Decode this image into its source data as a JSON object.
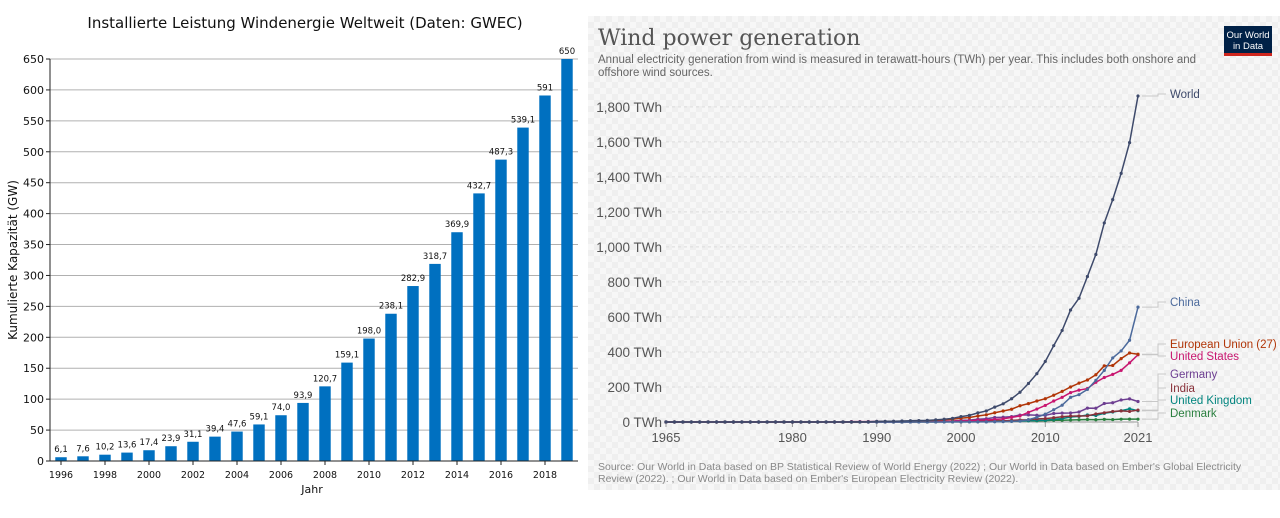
{
  "chart_data": [
    {
      "type": "bar",
      "title": "Installierte Leistung Windenergie Weltweit (Daten: GWEC)",
      "xlabel": "Jahr",
      "ylabel": "Kumulierte Kapazität (GW)",
      "ylim": [
        0,
        650
      ],
      "yticks": [
        0,
        50,
        100,
        150,
        200,
        250,
        300,
        350,
        400,
        450,
        500,
        550,
        600,
        650
      ],
      "xticks": [
        "1996",
        "1998",
        "2000",
        "2002",
        "2004",
        "2006",
        "2008",
        "2010",
        "2012",
        "2014",
        "2016",
        "2018"
      ],
      "categories": [
        "1996",
        "1997",
        "1998",
        "1999",
        "2000",
        "2001",
        "2002",
        "2003",
        "2004",
        "2005",
        "2006",
        "2007",
        "2008",
        "2009",
        "2010",
        "2011",
        "2012",
        "2013",
        "2014",
        "2015",
        "2016",
        "2017",
        "2018",
        "2019"
      ],
      "values": [
        6.1,
        7.6,
        10.2,
        13.6,
        17.4,
        23.9,
        31.1,
        39.4,
        47.6,
        59.1,
        74.0,
        93.9,
        120.7,
        159.1,
        198.0,
        238.1,
        282.9,
        318.7,
        369.9,
        432.7,
        487.3,
        539.1,
        591,
        650
      ],
      "data_labels": [
        "6,1",
        "7,6",
        "10,2",
        "13,6",
        "17,4",
        "23,9",
        "31,1",
        "39,4",
        "47,6",
        "59,1",
        "74,0",
        "93,9",
        "120,7",
        "159,1",
        "198,0",
        "238,1",
        "282,9",
        "318,7",
        "369,9",
        "432,7",
        "487,3",
        "539,1",
        "591",
        "650"
      ],
      "bar_color": "#0070c0",
      "grid": true
    },
    {
      "type": "line",
      "title": "Wind power generation",
      "subtitle": "Annual electricity generation from wind is measured in terawatt-hours (TWh) per year. This includes both onshore and offshore wind sources.",
      "source": "Source: Our World in Data based on BP Statistical Review of World Energy (2022) ; Our World in Data based on Ember's Global Electricity Review (2022). ; Our World in Data based on Ember's European Electricity Review (2022).",
      "logo": "Our World in Data",
      "logo_lines": [
        "Our World",
        "in Data"
      ],
      "xlim": [
        1965,
        2021
      ],
      "ylim": [
        0,
        1862
      ],
      "xticks": [
        "1965",
        "1980",
        "1990",
        "2000",
        "2010",
        "2021"
      ],
      "yticks": [
        0,
        200,
        400,
        600,
        800,
        1000,
        1200,
        1400,
        1600,
        1800
      ],
      "ytick_labels": [
        "0 TWh",
        "200 TWh",
        "400 TWh",
        "600 TWh",
        "800 TWh",
        "1,000 TWh",
        "1,200 TWh",
        "1,400 TWh",
        "1,600 TWh",
        "1,800 TWh"
      ],
      "x": [
        1965,
        1966,
        1967,
        1968,
        1969,
        1970,
        1971,
        1972,
        1973,
        1974,
        1975,
        1976,
        1977,
        1978,
        1979,
        1980,
        1981,
        1982,
        1983,
        1984,
        1985,
        1986,
        1987,
        1988,
        1989,
        1990,
        1991,
        1992,
        1993,
        1994,
        1995,
        1996,
        1997,
        1998,
        1999,
        2000,
        2001,
        2002,
        2003,
        2004,
        2005,
        2006,
        2007,
        2008,
        2009,
        2010,
        2011,
        2012,
        2013,
        2014,
        2015,
        2016,
        2017,
        2018,
        2019,
        2020,
        2021
      ],
      "series": [
        {
          "name": "World",
          "color": "#3e4a6b",
          "values": [
            0,
            0,
            0,
            0,
            0,
            0,
            0,
            0,
            0,
            0,
            0,
            0,
            0,
            0,
            0,
            0,
            0,
            0,
            0,
            0,
            0,
            0,
            0.5,
            1,
            1.5,
            3.6,
            4,
            4.6,
            5.6,
            7.2,
            8.3,
            9.2,
            12,
            16,
            21,
            31,
            38,
            52,
            63,
            85,
            104,
            133,
            170,
            220,
            276,
            346,
            436,
            523,
            640,
            707,
            831,
            957,
            1137,
            1270,
            1420,
            1596,
            1862
          ]
        },
        {
          "name": "China",
          "color": "#4c6a9c",
          "values": [
            0,
            0,
            0,
            0,
            0,
            0,
            0,
            0,
            0,
            0,
            0,
            0,
            0,
            0,
            0,
            0,
            0,
            0,
            0,
            0,
            0,
            0,
            0,
            0,
            0,
            0,
            0,
            0,
            0,
            0,
            0,
            0,
            0,
            0,
            0.5,
            0.6,
            0.7,
            0.9,
            1,
            1.3,
            2,
            3.7,
            5.7,
            13,
            27,
            45,
            70,
            96,
            141,
            156,
            186,
            238,
            295,
            366,
            406,
            467,
            656
          ]
        },
        {
          "name": "European Union (27)",
          "color": "#b13507",
          "values": [
            0,
            0,
            0,
            0,
            0,
            0,
            0,
            0,
            0,
            0,
            0,
            0,
            0,
            0,
            0,
            0,
            0,
            0,
            0,
            0,
            0,
            0,
            0,
            0.3,
            0.7,
            0.8,
            1.2,
            1.9,
            2.6,
            3.8,
            5.5,
            7,
            9.8,
            13,
            16,
            22,
            26,
            34,
            41,
            53,
            63,
            73,
            93,
            105,
            120,
            133,
            153,
            175,
            200,
            222,
            240,
            270,
            321,
            323,
            362,
            394,
            387
          ]
        },
        {
          "name": "United States",
          "color": "#c8156f",
          "values": [
            0,
            0,
            0,
            0,
            0,
            0,
            0,
            0,
            0,
            0,
            0,
            0,
            0,
            0,
            0,
            0,
            0,
            0,
            0,
            0,
            0,
            0,
            2.1,
            2,
            2.3,
            2.8,
            2.9,
            2.9,
            3,
            3.5,
            3.2,
            3.2,
            3.3,
            3,
            4.5,
            5.6,
            6.7,
            10.4,
            11.2,
            14.1,
            17.8,
            26.6,
            34.5,
            55.4,
            73.9,
            94.6,
            120,
            141,
            168,
            182,
            191,
            227,
            254,
            272,
            295,
            338,
            384
          ]
        },
        {
          "name": "Germany",
          "color": "#6d3e91",
          "values": [
            0,
            0,
            0,
            0,
            0,
            0,
            0,
            0,
            0,
            0,
            0,
            0,
            0,
            0,
            0,
            0,
            0,
            0,
            0,
            0,
            0,
            0,
            0,
            0,
            0,
            0.1,
            0.2,
            0.3,
            0.6,
            0.9,
            1.5,
            2,
            3,
            4.6,
            5.5,
            9.5,
            10.5,
            15.8,
            18.7,
            25.5,
            27.2,
            30.7,
            39.7,
            40.6,
            38.6,
            37.8,
            48.9,
            50.7,
            51.7,
            57.4,
            79.2,
            78.6,
            105.7,
            110,
            126,
            132,
            117
          ]
        },
        {
          "name": "India",
          "color": "#883039",
          "values": [
            0,
            0,
            0,
            0,
            0,
            0,
            0,
            0,
            0,
            0,
            0,
            0,
            0,
            0,
            0,
            0,
            0,
            0,
            0,
            0,
            0,
            0,
            0,
            0,
            0,
            0,
            0,
            0,
            0.1,
            0.3,
            0.6,
            0.9,
            1,
            1.1,
            1.3,
            1.7,
            2,
            2.4,
            3.6,
            4.7,
            6.5,
            9.3,
            11.6,
            13.2,
            17.6,
            19.6,
            24.2,
            29.8,
            33.5,
            34.4,
            35.1,
            46,
            52.6,
            60.3,
            63.3,
            60.4,
            68
          ]
        },
        {
          "name": "United Kingdom",
          "color": "#00847e",
          "values": [
            0,
            0,
            0,
            0,
            0,
            0,
            0,
            0,
            0,
            0,
            0,
            0,
            0,
            0,
            0,
            0,
            0,
            0,
            0,
            0,
            0,
            0,
            0,
            0,
            0,
            0,
            0,
            0,
            0.2,
            0.3,
            0.4,
            0.5,
            0.7,
            0.9,
            0.9,
            0.9,
            1,
            1.3,
            1.3,
            1.9,
            2.9,
            4.2,
            5.3,
            7.1,
            9.3,
            10.2,
            15.5,
            19.6,
            28.4,
            32.1,
            40.3,
            37.2,
            49.6,
            56.9,
            64.3,
            75.4,
            64.5
          ]
        },
        {
          "name": "Denmark",
          "color": "#2a7f3f",
          "values": [
            0,
            0,
            0,
            0,
            0,
            0,
            0,
            0,
            0,
            0,
            0,
            0,
            0,
            0,
            0,
            0,
            0,
            0,
            0,
            0,
            0,
            0,
            0.2,
            0.3,
            0.4,
            0.6,
            0.7,
            0.9,
            1,
            1.1,
            1.2,
            1.2,
            1.9,
            2.8,
            3,
            4.2,
            4.3,
            4.9,
            5.6,
            6.6,
            6.6,
            6.1,
            7.2,
            6.9,
            6.7,
            7.8,
            9.8,
            10.3,
            11.1,
            13.1,
            14.1,
            12.8,
            14.8,
            13.9,
            16.1,
            16.3,
            16.1
          ]
        }
      ]
    }
  ]
}
